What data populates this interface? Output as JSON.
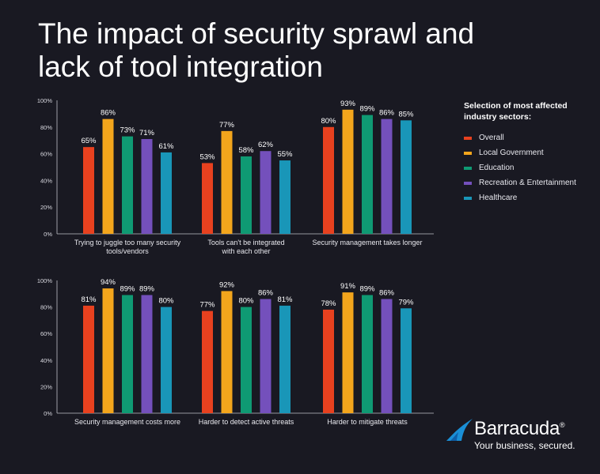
{
  "title_lines": [
    "The impact of security sprawl and",
    "lack of tool integration"
  ],
  "legend": {
    "title_lines": [
      "Selection of most affected",
      "industry sectors:"
    ]
  },
  "brand": {
    "name": "Barracuda",
    "mark": "®",
    "tagline": "Your business, secured."
  },
  "chart_data": [
    {
      "type": "bar",
      "ylim": [
        0,
        100
      ],
      "yticks": [
        "0%",
        "20%",
        "40%",
        "60%",
        "80%",
        "100%"
      ],
      "categories": [
        [
          "Trying to juggle too many security",
          "tools/vendors"
        ],
        [
          "Tools can't be integrated",
          "with each other"
        ],
        [
          "Security management takes longer"
        ]
      ],
      "series": [
        {
          "name": "Overall",
          "color": "#e8411f",
          "values": [
            65,
            53,
            80
          ]
        },
        {
          "name": "Local Government",
          "color": "#f3a51c",
          "values": [
            86,
            77,
            93
          ]
        },
        {
          "name": "Education",
          "color": "#0f9a73",
          "values": [
            73,
            58,
            89
          ]
        },
        {
          "name": "Recreation & Entertainment",
          "color": "#7450bc",
          "values": [
            71,
            62,
            86
          ]
        },
        {
          "name": "Healthcare",
          "color": "#1996b8",
          "values": [
            61,
            55,
            85
          ]
        }
      ]
    },
    {
      "type": "bar",
      "ylim": [
        0,
        100
      ],
      "yticks": [
        "0%",
        "20%",
        "40%",
        "60%",
        "80%",
        "100%"
      ],
      "categories": [
        [
          "Security management costs more"
        ],
        [
          "Harder to detect active threats"
        ],
        [
          "Harder to mitigate threats"
        ]
      ],
      "series": [
        {
          "name": "Overall",
          "color": "#e8411f",
          "values": [
            81,
            77,
            78
          ]
        },
        {
          "name": "Local Government",
          "color": "#f3a51c",
          "values": [
            94,
            92,
            91
          ]
        },
        {
          "name": "Education",
          "color": "#0f9a73",
          "values": [
            89,
            80,
            89
          ]
        },
        {
          "name": "Recreation & Entertainment",
          "color": "#7450bc",
          "values": [
            89,
            86,
            86
          ]
        },
        {
          "name": "Healthcare",
          "color": "#1996b8",
          "values": [
            80,
            81,
            79
          ]
        }
      ]
    }
  ]
}
